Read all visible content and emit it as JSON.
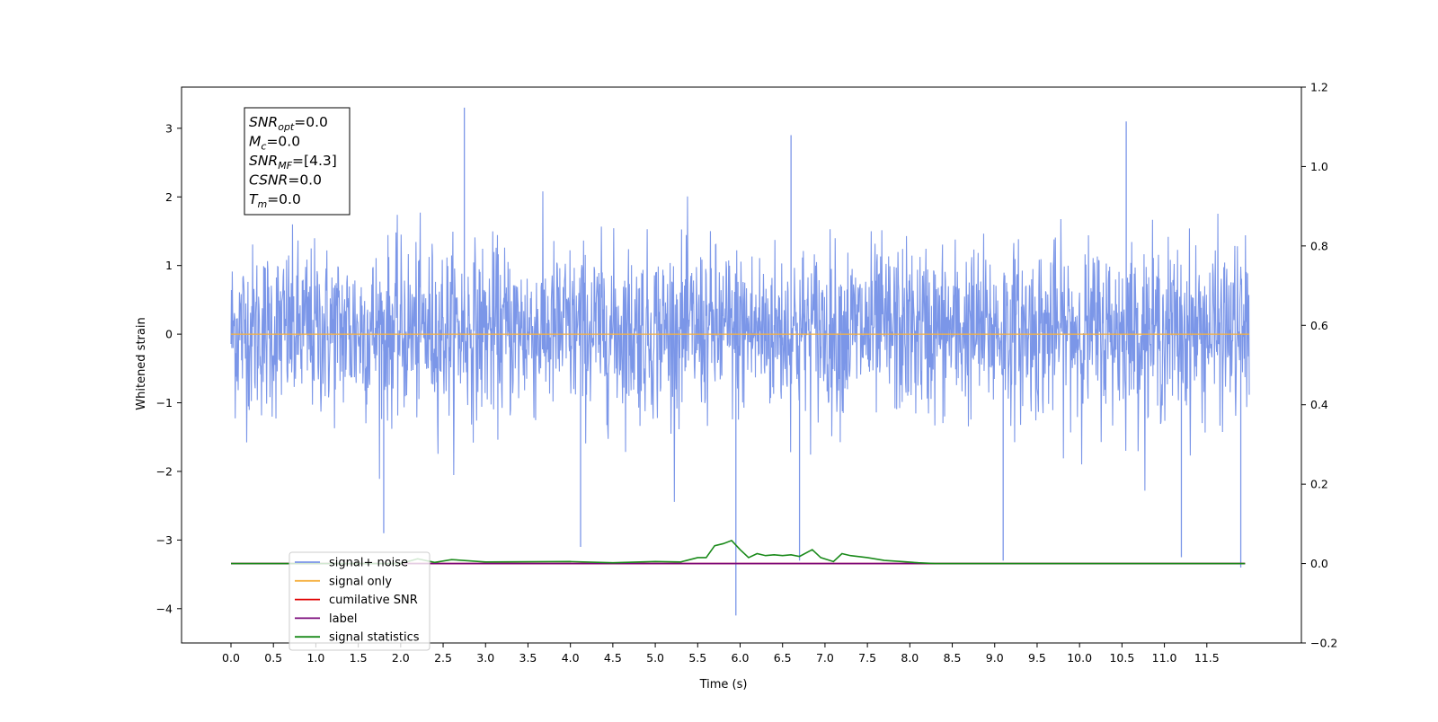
{
  "chart_data": {
    "type": "line",
    "xlabel": "Time (s)",
    "ylabel": "Whitened strain",
    "ylim": [
      -4.5,
      3.6
    ],
    "y2lim": [
      -0.2,
      1.2
    ],
    "x_range": [
      0,
      12
    ],
    "x_ticks": [
      "0.0",
      "0.5",
      "1.0",
      "1.5",
      "2.0",
      "2.5",
      "3.0",
      "3.5",
      "4.0",
      "4.5",
      "5.0",
      "5.5",
      "6.0",
      "6.5",
      "7.0",
      "7.5",
      "8.0",
      "8.5",
      "9.0",
      "9.5",
      "10.0",
      "10.5",
      "11.0",
      "11.5"
    ],
    "y_ticks": [
      "3",
      "2",
      "1",
      "0",
      "−1",
      "−2",
      "−3",
      "−4"
    ],
    "y2_ticks": [
      "1.2",
      "1.0",
      "0.8",
      "0.6",
      "0.4",
      "0.2",
      "0.0",
      "−0.2"
    ],
    "noise_band": {
      "typical_range": [
        -1.7,
        1.8
      ],
      "max_peak": 3.3,
      "min_peak": -4.1
    },
    "series": [
      {
        "name": "signal+ noise",
        "color": "#7b96e8",
        "axis": "left"
      },
      {
        "name": "signal only",
        "color": "#f5b041",
        "axis": "left",
        "value": 0.0
      },
      {
        "name": "cumilative SNR",
        "color": "#e00000",
        "axis": "right",
        "value": 0.0
      },
      {
        "name": "label",
        "color": "#7b0a7b",
        "axis": "right",
        "value": 0.0
      },
      {
        "name": "signal statistics",
        "color": "#1a8a1a",
        "axis": "right",
        "x": [
          0.0,
          2.0,
          2.2,
          2.4,
          2.6,
          3.0,
          4.0,
          4.5,
          5.0,
          5.3,
          5.5,
          5.6,
          5.7,
          5.8,
          5.9,
          6.0,
          6.1,
          6.2,
          6.3,
          6.4,
          6.5,
          6.6,
          6.7,
          6.85,
          6.95,
          7.1,
          7.2,
          7.3,
          7.5,
          7.7,
          7.9,
          8.1,
          8.3,
          11.95
        ],
        "values": [
          0.0,
          0.0,
          0.012,
          0.003,
          0.01,
          0.004,
          0.005,
          0.002,
          0.005,
          0.004,
          0.015,
          0.015,
          0.045,
          0.05,
          0.058,
          0.035,
          0.015,
          0.025,
          0.02,
          0.022,
          0.02,
          0.022,
          0.018,
          0.035,
          0.015,
          0.005,
          0.025,
          0.02,
          0.015,
          0.008,
          0.005,
          0.002,
          0.0,
          0.0
        ]
      }
    ],
    "annotation": [
      {
        "label": "SNR",
        "sub": "opt",
        "value": "=0.0"
      },
      {
        "label": "M",
        "sub": "c",
        "value": "=0.0"
      },
      {
        "label": "SNR",
        "sub": "MF",
        "value": "=[4.3]"
      },
      {
        "label": "CSNR",
        "sub": "",
        "value": "=0.0"
      },
      {
        "label": "T",
        "sub": "m",
        "value": "=0.0"
      }
    ],
    "legend_position": "lower-left",
    "grid": false
  }
}
